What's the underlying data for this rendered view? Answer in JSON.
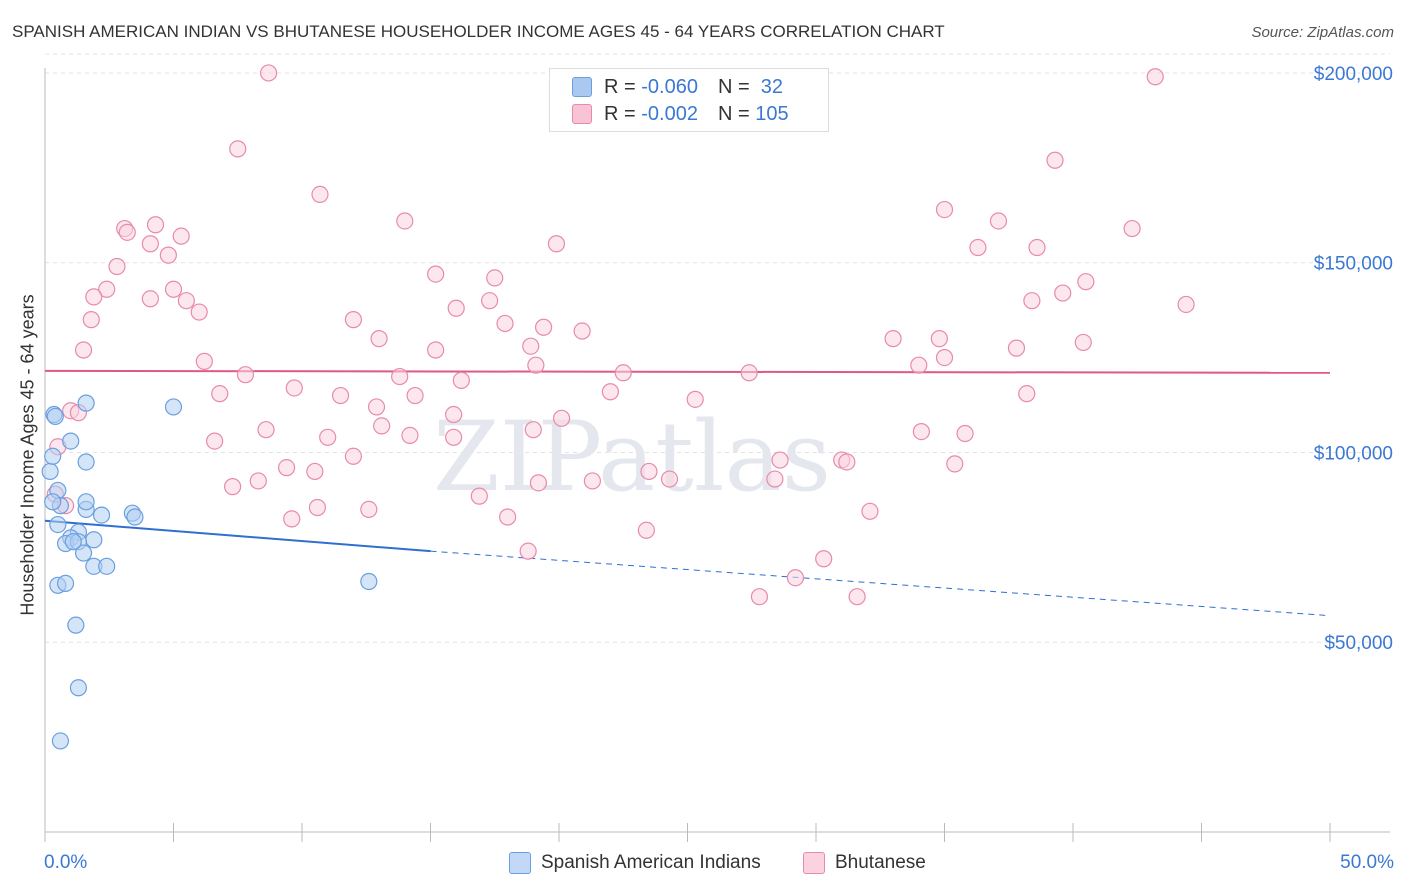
{
  "title": "SPANISH AMERICAN INDIAN VS BHUTANESE HOUSEHOLDER INCOME AGES 45 - 64 YEARS CORRELATION CHART",
  "source": "Source: ZipAtlas.com",
  "watermark": "ZIPatlas",
  "legend": {
    "rows": [
      {
        "r_label": "R = ",
        "r_value": "-0.060",
        "n_label": "N = ",
        "n_value": " 32",
        "color": "#aac8f0",
        "border": "#6a9fe0"
      },
      {
        "r_label": "R = ",
        "r_value": "-0.002",
        "n_label": "N = ",
        "n_value": "105",
        "color": "#f8c3d4",
        "border": "#e88aab"
      }
    ]
  },
  "bottom_legend": {
    "items": [
      {
        "label": "Spanish American Indians",
        "color": "#c3d8f6",
        "border": "#6a9fe0"
      },
      {
        "label": "Bhutanese",
        "color": "#fbd3e0",
        "border": "#e88aab"
      }
    ]
  },
  "chart_data": {
    "type": "scatter",
    "title": "SPANISH AMERICAN INDIAN VS BHUTANESE HOUSEHOLDER INCOME AGES 45 - 64 YEARS CORRELATION CHART",
    "xlabel": "",
    "ylabel": "Householder Income Ages 45 - 64 years",
    "xlim": [
      0,
      50
    ],
    "ylim": [
      0,
      210000
    ],
    "x_tick_labels": [
      "0.0%",
      "50.0%"
    ],
    "y_ticks": [
      50000,
      100000,
      150000,
      200000
    ],
    "y_tick_labels": [
      "$50,000",
      "$100,000",
      "$150,000",
      "$200,000"
    ],
    "grid": true,
    "series": [
      {
        "name": "Spanish American Indians",
        "color": "#6a9fe0",
        "fill": "#b3cff2",
        "points": [
          [
            0.2,
            95000
          ],
          [
            0.3,
            99000
          ],
          [
            0.35,
            110000
          ],
          [
            0.4,
            109500
          ],
          [
            0.5,
            90000
          ],
          [
            0.6,
            86000
          ],
          [
            0.5,
            81000
          ],
          [
            1.0,
            103000
          ],
          [
            1.6,
            113000
          ],
          [
            1.6,
            97500
          ],
          [
            1.6,
            85000
          ],
          [
            1.6,
            87000
          ],
          [
            2.2,
            83500
          ],
          [
            3.4,
            84000
          ],
          [
            3.5,
            83000
          ],
          [
            1.3,
            79000
          ],
          [
            1.0,
            77500
          ],
          [
            1.9,
            77000
          ],
          [
            0.8,
            76000
          ],
          [
            1.3,
            76500
          ],
          [
            1.5,
            73500
          ],
          [
            1.9,
            70000
          ],
          [
            2.4,
            70000
          ],
          [
            0.5,
            65000
          ],
          [
            0.8,
            65500
          ],
          [
            1.2,
            54500
          ],
          [
            1.3,
            38000
          ],
          [
            0.6,
            24000
          ],
          [
            5.0,
            112000
          ],
          [
            12.6,
            66000
          ],
          [
            0.3,
            87000
          ],
          [
            1.1,
            76500
          ]
        ],
        "trend": {
          "x0": 0,
          "y0": 82000,
          "x1": 15,
          "y1": 74000,
          "dash_x1": 50,
          "dash_y1": 57000
        }
      },
      {
        "name": "Bhutanese",
        "color": "#e88aab",
        "fill": "#fbd3e0",
        "points": [
          [
            8.7,
            200000
          ],
          [
            43.2,
            199000
          ],
          [
            7.5,
            180000
          ],
          [
            39.3,
            177000
          ],
          [
            10.7,
            168000
          ],
          [
            14.0,
            161000
          ],
          [
            35.0,
            164000
          ],
          [
            37.1,
            161000
          ],
          [
            42.3,
            159000
          ],
          [
            4.3,
            160000
          ],
          [
            3.1,
            159000
          ],
          [
            3.2,
            158000
          ],
          [
            5.3,
            157000
          ],
          [
            4.1,
            155000
          ],
          [
            19.9,
            155000
          ],
          [
            36.3,
            154000
          ],
          [
            38.6,
            154000
          ],
          [
            4.8,
            152000
          ],
          [
            2.8,
            149000
          ],
          [
            15.2,
            147000
          ],
          [
            17.5,
            146000
          ],
          [
            2.4,
            143000
          ],
          [
            5.0,
            143000
          ],
          [
            40.5,
            145000
          ],
          [
            1.9,
            141000
          ],
          [
            4.1,
            140500
          ],
          [
            5.5,
            140000
          ],
          [
            39.6,
            142000
          ],
          [
            38.4,
            140000
          ],
          [
            44.4,
            139000
          ],
          [
            16.0,
            138000
          ],
          [
            17.3,
            140000
          ],
          [
            6.0,
            137000
          ],
          [
            1.8,
            135000
          ],
          [
            12.0,
            135000
          ],
          [
            17.9,
            134000
          ],
          [
            19.4,
            133000
          ],
          [
            20.9,
            132000
          ],
          [
            13.0,
            130000
          ],
          [
            33.0,
            130000
          ],
          [
            34.8,
            130000
          ],
          [
            40.4,
            129000
          ],
          [
            18.9,
            128000
          ],
          [
            15.2,
            127000
          ],
          [
            1.5,
            127000
          ],
          [
            37.8,
            127500
          ],
          [
            35.0,
            125000
          ],
          [
            6.2,
            124000
          ],
          [
            19.1,
            123000
          ],
          [
            34.0,
            123000
          ],
          [
            7.8,
            120500
          ],
          [
            13.8,
            120000
          ],
          [
            16.2,
            119000
          ],
          [
            22.5,
            121000
          ],
          [
            27.4,
            121000
          ],
          [
            9.7,
            117000
          ],
          [
            22.0,
            116000
          ],
          [
            6.8,
            115500
          ],
          [
            11.5,
            115000
          ],
          [
            14.4,
            115000
          ],
          [
            38.2,
            115500
          ],
          [
            25.3,
            114000
          ],
          [
            12.9,
            112000
          ],
          [
            1.0,
            111000
          ],
          [
            1.3,
            110500
          ],
          [
            15.9,
            110000
          ],
          [
            20.1,
            109000
          ],
          [
            13.1,
            107000
          ],
          [
            8.6,
            106000
          ],
          [
            19.0,
            106000
          ],
          [
            34.1,
            105500
          ],
          [
            35.8,
            105000
          ],
          [
            11.0,
            104000
          ],
          [
            14.2,
            104500
          ],
          [
            15.9,
            104000
          ],
          [
            6.6,
            103000
          ],
          [
            0.5,
            101500
          ],
          [
            12.0,
            99000
          ],
          [
            28.6,
            98000
          ],
          [
            31.0,
            98000
          ],
          [
            31.2,
            97500
          ],
          [
            35.4,
            97000
          ],
          [
            9.4,
            96000
          ],
          [
            10.5,
            95000
          ],
          [
            23.5,
            95000
          ],
          [
            24.3,
            93000
          ],
          [
            8.3,
            92500
          ],
          [
            19.2,
            92000
          ],
          [
            21.3,
            92500
          ],
          [
            28.4,
            93000
          ],
          [
            7.3,
            91000
          ],
          [
            0.4,
            89000
          ],
          [
            16.9,
            88500
          ],
          [
            10.6,
            85500
          ],
          [
            12.6,
            85000
          ],
          [
            0.8,
            86000
          ],
          [
            32.1,
            84500
          ],
          [
            9.6,
            82500
          ],
          [
            18.0,
            83000
          ],
          [
            23.4,
            79500
          ],
          [
            18.8,
            74000
          ],
          [
            30.3,
            72000
          ],
          [
            29.2,
            67000
          ],
          [
            27.8,
            62000
          ],
          [
            31.6,
            62000
          ]
        ],
        "trend": {
          "x0": 0,
          "y0": 121500,
          "x1": 50,
          "y1": 121000
        }
      }
    ]
  }
}
